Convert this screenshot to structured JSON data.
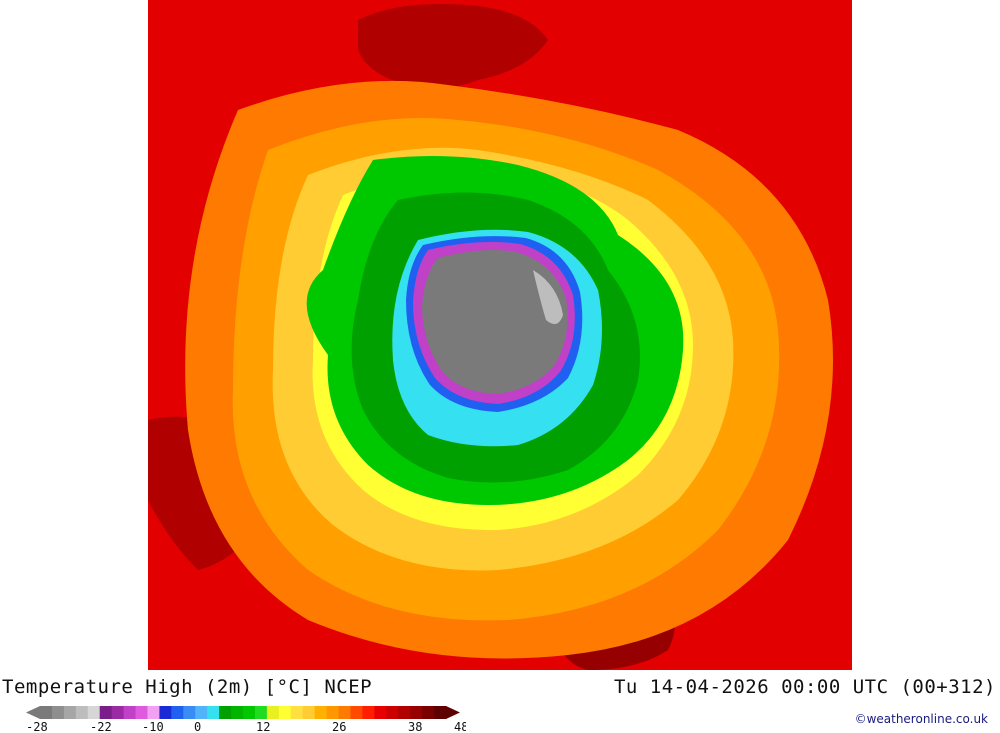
{
  "header": {
    "title": "Temperature High (2m) [°C] NCEP",
    "datetime": "Tu 14-04-2026 00:00 UTC (00+312)"
  },
  "legend": {
    "ticks": [
      "-28",
      "-22",
      "-10",
      "0",
      "12",
      "26",
      "38",
      "48"
    ],
    "colors": [
      "#7a7a7a",
      "#8e8e8e",
      "#a6a6a6",
      "#bdbdbd",
      "#d6d6d6",
      "#7a1f8a",
      "#9b2aa5",
      "#c040c8",
      "#e05ae0",
      "#f2a0f2",
      "#1a2ad6",
      "#2060f0",
      "#3a8cf5",
      "#52b4f8",
      "#35e0f0",
      "#00a000",
      "#00b400",
      "#00c800",
      "#20dc20",
      "#e8f020",
      "#ffff33",
      "#ffe040",
      "#ffcc33",
      "#ffb000",
      "#ff9800",
      "#ff7a00",
      "#ff4a00",
      "#ff1e00",
      "#e60000",
      "#cc0000",
      "#b00000",
      "#960000",
      "#7a0000",
      "#5e0000"
    ]
  },
  "credit": "©weatheronline.co.uk"
}
